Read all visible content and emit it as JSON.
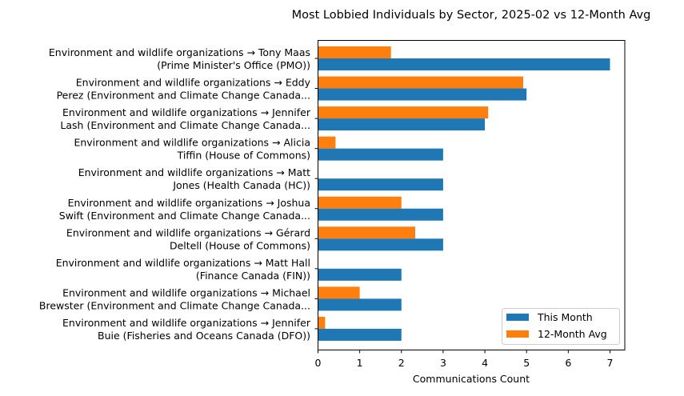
{
  "chart_data": {
    "type": "bar",
    "orientation": "horizontal",
    "title": "Most Lobbied Individuals by Sector, 2025-02 vs 12-Month Avg",
    "xlabel": "Communications Count",
    "ylabel": "",
    "xlim": [
      0,
      7.4
    ],
    "xticks": [
      0,
      1,
      2,
      3,
      4,
      5,
      6,
      7
    ],
    "grid": false,
    "legend_position": "lower-right",
    "categories": [
      [
        "Environment and wildlife organizations → Tony Maas",
        "(Prime Minister's Office (PMO))"
      ],
      [
        "Environment and wildlife organizations → Eddy",
        "Perez (Environment and Climate Change Canada..."
      ],
      [
        "Environment and wildlife organizations → Jennifer",
        "Lash (Environment and Climate Change Canada..."
      ],
      [
        "Environment and wildlife organizations → Alicia",
        "Tiffin (House of Commons)"
      ],
      [
        "Environment and wildlife organizations → Matt",
        "Jones (Health Canada (HC))"
      ],
      [
        "Environment and wildlife organizations → Joshua",
        "Swift (Environment and Climate Change Canada..."
      ],
      [
        "Environment and wildlife organizations → Gérard",
        "Deltell (House of Commons)"
      ],
      [
        "Environment and wildlife organizations → Matt Hall",
        "(Finance Canada (FIN))"
      ],
      [
        "Environment and wildlife organizations → Michael",
        "Brewster (Environment and Climate Change Canada..."
      ],
      [
        "Environment and wildlife organizations → Jennifer",
        "Buie (Fisheries and Oceans Canada (DFO))"
      ]
    ],
    "series": [
      {
        "name": "This Month",
        "color": "#1f77b4",
        "values": [
          7,
          5,
          4,
          3,
          3,
          3,
          3,
          2,
          2,
          2
        ]
      },
      {
        "name": "12-Month Avg",
        "color": "#ff7f0e",
        "values": [
          1.75,
          4.92,
          4.08,
          0.42,
          0,
          2.0,
          2.33,
          0,
          1.0,
          0.17
        ]
      }
    ]
  }
}
